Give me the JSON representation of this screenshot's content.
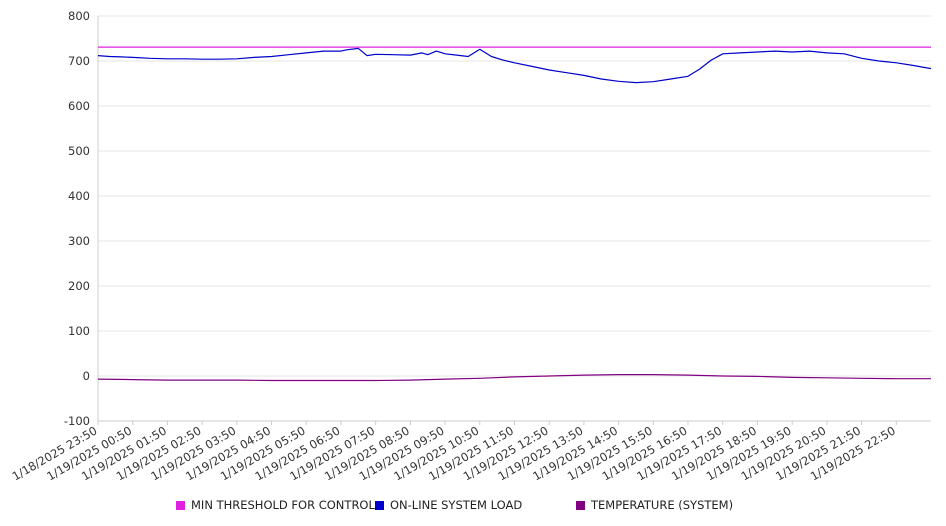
{
  "chart_data": {
    "type": "line",
    "title": "",
    "xlabel": "",
    "ylabel": "",
    "ylim": [
      -100,
      800
    ],
    "yticks": [
      -100,
      0,
      100,
      200,
      300,
      400,
      500,
      600,
      700,
      800
    ],
    "ytick_labels": [
      "-100",
      "0",
      "100",
      "200",
      "300",
      "400",
      "500",
      "600",
      "700",
      "800"
    ],
    "grid": true,
    "legend_position": "bottom",
    "x_labels": [
      "1/18/2025 23:50",
      "1/19/2025 00:50",
      "1/19/2025 01:50",
      "1/19/2025 02:50",
      "1/19/2025 03:50",
      "1/19/2025 04:50",
      "1/19/2025 05:50",
      "1/19/2025 06:50",
      "1/19/2025 07:50",
      "1/19/2025 08:50",
      "1/19/2025 09:50",
      "1/19/2025 10:50",
      "1/19/2025 11:50",
      "1/19/2025 12:50",
      "1/19/2025 13:50",
      "1/19/2025 14:50",
      "1/19/2025 15:50",
      "1/19/2025 16:50",
      "1/19/2025 17:50",
      "1/19/2025 18:50",
      "1/19/2025 19:50",
      "1/19/2025 20:50",
      "1/19/2025 21:50",
      "1/19/2025 22:50"
    ],
    "x_domain": [
      "1/18/2025 23:50",
      "1/19/2025 23:50"
    ],
    "series": [
      {
        "name": "MIN THRESHOLD FOR CONTROL",
        "color": "#e020e0",
        "x": [
          "1/18/2025 23:50",
          "1/19/2025 23:50"
        ],
        "values": [
          731,
          731
        ]
      },
      {
        "name": "ON-LINE SYSTEM LOAD",
        "color": "#0000cc",
        "x": [
          "1/18/2025 23:50",
          "1/19/2025 00:10",
          "1/19/2025 00:30",
          "1/19/2025 00:50",
          "1/19/2025 01:20",
          "1/19/2025 01:50",
          "1/19/2025 02:20",
          "1/19/2025 02:50",
          "1/19/2025 03:20",
          "1/19/2025 03:50",
          "1/19/2025 04:20",
          "1/19/2025 04:50",
          "1/19/2025 05:20",
          "1/19/2025 05:50",
          "1/19/2025 06:20",
          "1/19/2025 06:50",
          "1/19/2025 07:00",
          "1/19/2025 07:20",
          "1/19/2025 07:35",
          "1/19/2025 07:50",
          "1/19/2025 08:20",
          "1/19/2025 08:50",
          "1/19/2025 09:10",
          "1/19/2025 09:20",
          "1/19/2025 09:35",
          "1/19/2025 09:50",
          "1/19/2025 10:10",
          "1/19/2025 10:30",
          "1/19/2025 10:50",
          "1/19/2025 11:10",
          "1/19/2025 11:30",
          "1/19/2025 11:50",
          "1/19/2025 12:20",
          "1/19/2025 12:50",
          "1/19/2025 13:20",
          "1/19/2025 13:50",
          "1/19/2025 14:20",
          "1/19/2025 14:50",
          "1/19/2025 15:20",
          "1/19/2025 15:50",
          "1/19/2025 16:20",
          "1/19/2025 16:50",
          "1/19/2025 17:10",
          "1/19/2025 17:30",
          "1/19/2025 17:50",
          "1/19/2025 18:20",
          "1/19/2025 18:50",
          "1/19/2025 19:20",
          "1/19/2025 19:50",
          "1/19/2025 20:20",
          "1/19/2025 20:50",
          "1/19/2025 21:20",
          "1/19/2025 21:50",
          "1/19/2025 22:20",
          "1/19/2025 22:50",
          "1/19/2025 23:20",
          "1/19/2025 23:50"
        ],
        "values": [
          712,
          710,
          709,
          708,
          706,
          705,
          705,
          704,
          704,
          705,
          708,
          710,
          714,
          718,
          722,
          722,
          725,
          728,
          712,
          715,
          714,
          713,
          718,
          714,
          722,
          716,
          713,
          710,
          726,
          710,
          702,
          696,
          688,
          680,
          674,
          668,
          660,
          655,
          652,
          654,
          660,
          666,
          682,
          702,
          716,
          718,
          720,
          722,
          720,
          722,
          718,
          716,
          706,
          700,
          696,
          690,
          683
        ]
      },
      {
        "name": "TEMPERATURE (SYSTEM)",
        "color": "#800080",
        "x": [
          "1/18/2025 23:50",
          "1/19/2025 00:50",
          "1/19/2025 01:50",
          "1/19/2025 02:50",
          "1/19/2025 03:50",
          "1/19/2025 04:50",
          "1/19/2025 05:50",
          "1/19/2025 06:50",
          "1/19/2025 07:50",
          "1/19/2025 08:50",
          "1/19/2025 09:50",
          "1/19/2025 10:50",
          "1/19/2025 11:50",
          "1/19/2025 12:50",
          "1/19/2025 13:50",
          "1/19/2025 14:50",
          "1/19/2025 15:50",
          "1/19/2025 16:50",
          "1/19/2025 17:50",
          "1/19/2025 18:50",
          "1/19/2025 19:50",
          "1/19/2025 20:50",
          "1/19/2025 21:50",
          "1/19/2025 22:50",
          "1/19/2025 23:50"
        ],
        "values": [
          -7,
          -8,
          -9,
          -9,
          -9,
          -10,
          -10,
          -10,
          -10,
          -9,
          -7,
          -5,
          -2,
          0,
          2,
          3,
          3,
          2,
          0,
          -1,
          -3,
          -4,
          -5,
          -6,
          -6
        ]
      }
    ]
  }
}
